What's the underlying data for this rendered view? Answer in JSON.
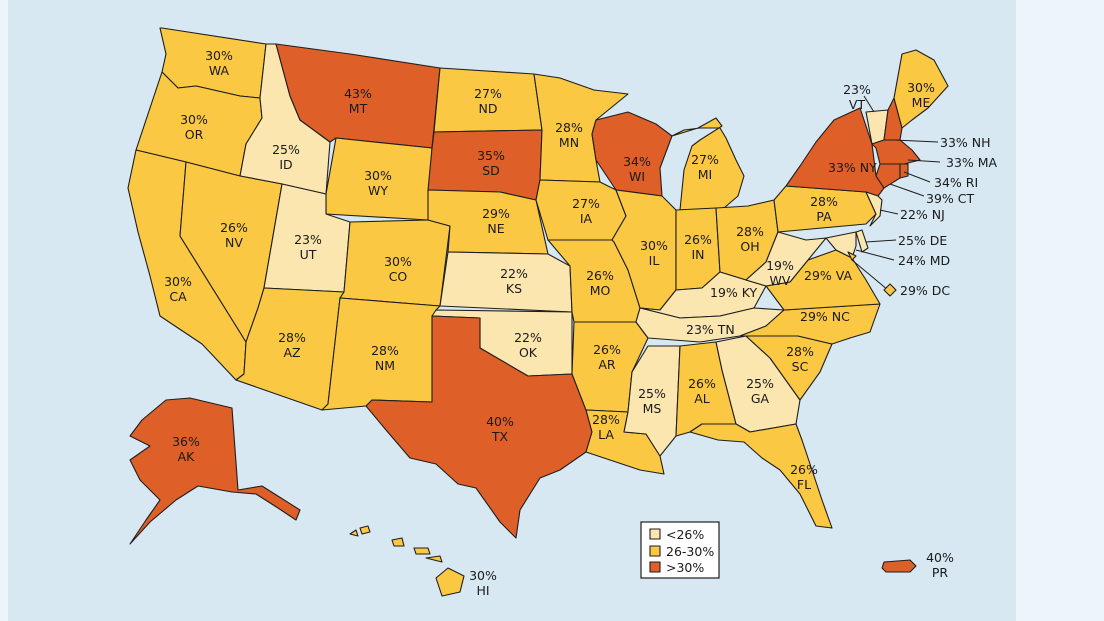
{
  "colors": {
    "low": "#fbe6b0",
    "mid": "#fbc843",
    "high": "#de5f27",
    "background": "#d8e8f3",
    "border": "#1e1e1e"
  },
  "legend": [
    {
      "label": "<26%",
      "class": "low"
    },
    {
      "label": "26-30%",
      "class": "mid"
    },
    {
      "label": ">30%",
      "class": "high"
    }
  ],
  "states": {
    "WA": {
      "value": "30%",
      "class": "mid"
    },
    "OR": {
      "value": "30%",
      "class": "mid"
    },
    "CA": {
      "value": "30%",
      "class": "mid"
    },
    "ID": {
      "value": "25%",
      "class": "low"
    },
    "NV": {
      "value": "26%",
      "class": "mid"
    },
    "MT": {
      "value": "43%",
      "class": "high"
    },
    "WY": {
      "value": "30%",
      "class": "mid"
    },
    "UT": {
      "value": "23%",
      "class": "low"
    },
    "AZ": {
      "value": "28%",
      "class": "mid"
    },
    "CO": {
      "value": "30%",
      "class": "mid"
    },
    "NM": {
      "value": "28%",
      "class": "mid"
    },
    "ND": {
      "value": "27%",
      "class": "mid"
    },
    "SD": {
      "value": "35%",
      "class": "high"
    },
    "NE": {
      "value": "29%",
      "class": "mid"
    },
    "KS": {
      "value": "22%",
      "class": "low"
    },
    "OK": {
      "value": "22%",
      "class": "low"
    },
    "TX": {
      "value": "40%",
      "class": "high"
    },
    "MN": {
      "value": "28%",
      "class": "mid"
    },
    "IA": {
      "value": "27%",
      "class": "mid"
    },
    "MO": {
      "value": "26%",
      "class": "mid"
    },
    "AR": {
      "value": "26%",
      "class": "mid"
    },
    "LA": {
      "value": "28%",
      "class": "mid"
    },
    "WI": {
      "value": "34%",
      "class": "high"
    },
    "IL": {
      "value": "30%",
      "class": "mid"
    },
    "MI": {
      "value": "27%",
      "class": "mid"
    },
    "IN": {
      "value": "26%",
      "class": "mid"
    },
    "OH": {
      "value": "28%",
      "class": "mid"
    },
    "KY": {
      "value": "19%",
      "class": "low"
    },
    "TN": {
      "value": "23%",
      "class": "low"
    },
    "MS": {
      "value": "25%",
      "class": "low"
    },
    "AL": {
      "value": "26%",
      "class": "mid"
    },
    "GA": {
      "value": "25%",
      "class": "low"
    },
    "FL": {
      "value": "26%",
      "class": "mid"
    },
    "SC": {
      "value": "28%",
      "class": "mid"
    },
    "NC": {
      "value": "29%",
      "class": "mid"
    },
    "VA": {
      "value": "29%",
      "class": "mid"
    },
    "WV": {
      "value": "19%",
      "class": "low"
    },
    "PA": {
      "value": "28%",
      "class": "mid"
    },
    "NY": {
      "value": "33%",
      "class": "high"
    },
    "VT": {
      "value": "23%",
      "class": "low"
    },
    "NH": {
      "value": "33%",
      "class": "high"
    },
    "ME": {
      "value": "30%",
      "class": "mid"
    },
    "MA": {
      "value": "33%",
      "class": "high"
    },
    "RI": {
      "value": "34%",
      "class": "high"
    },
    "CT": {
      "value": "39%",
      "class": "high"
    },
    "NJ": {
      "value": "22%",
      "class": "low"
    },
    "DE": {
      "value": "25%",
      "class": "low"
    },
    "MD": {
      "value": "24%",
      "class": "low"
    },
    "DC": {
      "value": "29%",
      "class": "mid"
    },
    "AK": {
      "value": "36%",
      "class": "high"
    },
    "HI": {
      "value": "30%",
      "class": "mid"
    },
    "PR": {
      "value": "40%",
      "class": "high"
    }
  }
}
